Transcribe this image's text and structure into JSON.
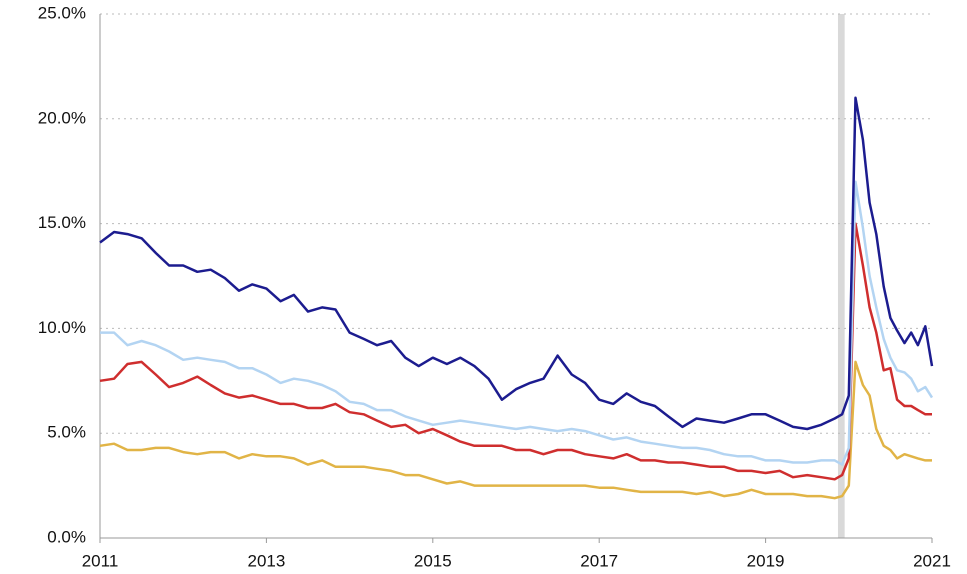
{
  "chart_data": {
    "type": "line",
    "x": [
      2011,
      2011.17,
      2011.33,
      2011.5,
      2011.67,
      2011.83,
      2012,
      2012.17,
      2012.33,
      2012.5,
      2012.67,
      2012.83,
      2013,
      2013.17,
      2013.33,
      2013.5,
      2013.67,
      2013.83,
      2014,
      2014.17,
      2014.33,
      2014.5,
      2014.67,
      2014.83,
      2015,
      2015.17,
      2015.33,
      2015.5,
      2015.67,
      2015.83,
      2016,
      2016.17,
      2016.33,
      2016.5,
      2016.67,
      2016.83,
      2017,
      2017.17,
      2017.33,
      2017.5,
      2017.67,
      2017.83,
      2018,
      2018.17,
      2018.33,
      2018.5,
      2018.67,
      2018.83,
      2019,
      2019.17,
      2019.33,
      2019.5,
      2019.67,
      2019.83,
      2019.92,
      2020,
      2020.08,
      2020.17,
      2020.25,
      2020.33,
      2020.42,
      2020.5,
      2020.58,
      2020.67,
      2020.75,
      2020.83,
      2020.92,
      2021
    ],
    "series": [
      {
        "color": "#1c1c8f",
        "values": [
          14.1,
          14.6,
          14.5,
          14.3,
          13.6,
          13.0,
          13.0,
          12.7,
          12.8,
          12.4,
          11.8,
          12.1,
          11.9,
          11.3,
          11.6,
          10.8,
          11.0,
          10.9,
          9.8,
          9.5,
          9.2,
          9.4,
          8.6,
          8.2,
          8.6,
          8.3,
          8.6,
          8.2,
          7.6,
          6.6,
          7.1,
          7.4,
          7.6,
          8.7,
          7.8,
          7.4,
          6.6,
          6.4,
          6.9,
          6.5,
          6.3,
          5.8,
          5.3,
          5.7,
          5.6,
          5.5,
          5.7,
          5.9,
          5.9,
          5.6,
          5.3,
          5.2,
          5.4,
          5.7,
          5.9,
          6.8,
          21.0,
          19.0,
          16.0,
          14.5,
          12.0,
          10.5,
          9.9,
          9.3,
          9.8,
          9.2,
          10.1,
          8.2
        ]
      },
      {
        "color": "#b3d4f2",
        "values": [
          9.8,
          9.8,
          9.2,
          9.4,
          9.2,
          8.9,
          8.5,
          8.6,
          8.5,
          8.4,
          8.1,
          8.1,
          7.8,
          7.4,
          7.6,
          7.5,
          7.3,
          7.0,
          6.5,
          6.4,
          6.1,
          6.1,
          5.8,
          5.6,
          5.4,
          5.5,
          5.6,
          5.5,
          5.4,
          5.3,
          5.2,
          5.3,
          5.2,
          5.1,
          5.2,
          5.1,
          4.9,
          4.7,
          4.8,
          4.6,
          4.5,
          4.4,
          4.3,
          4.3,
          4.2,
          4.0,
          3.9,
          3.9,
          3.7,
          3.7,
          3.6,
          3.6,
          3.7,
          3.7,
          3.5,
          4.3,
          17.0,
          14.8,
          12.5,
          11.0,
          9.5,
          8.6,
          8.0,
          7.9,
          7.6,
          7.0,
          7.2,
          6.7
        ]
      },
      {
        "color": "#cf2e2e",
        "values": [
          7.5,
          7.6,
          8.3,
          8.4,
          7.8,
          7.2,
          7.4,
          7.7,
          7.3,
          6.9,
          6.7,
          6.8,
          6.6,
          6.4,
          6.4,
          6.2,
          6.2,
          6.4,
          6.0,
          5.9,
          5.6,
          5.3,
          5.4,
          5.0,
          5.2,
          4.9,
          4.6,
          4.4,
          4.4,
          4.4,
          4.2,
          4.2,
          4.0,
          4.2,
          4.2,
          4.0,
          3.9,
          3.8,
          4.0,
          3.7,
          3.7,
          3.6,
          3.6,
          3.5,
          3.4,
          3.4,
          3.2,
          3.2,
          3.1,
          3.2,
          2.9,
          3.0,
          2.9,
          2.8,
          3.0,
          3.8,
          15.0,
          13.0,
          11.0,
          9.8,
          8.0,
          8.1,
          6.6,
          6.3,
          6.3,
          6.1,
          5.9,
          5.9
        ]
      },
      {
        "color": "#e1b446",
        "values": [
          4.4,
          4.5,
          4.2,
          4.2,
          4.3,
          4.3,
          4.1,
          4.0,
          4.1,
          4.1,
          3.8,
          4.0,
          3.9,
          3.9,
          3.8,
          3.5,
          3.7,
          3.4,
          3.4,
          3.4,
          3.3,
          3.2,
          3.0,
          3.0,
          2.8,
          2.6,
          2.7,
          2.5,
          2.5,
          2.5,
          2.5,
          2.5,
          2.5,
          2.5,
          2.5,
          2.5,
          2.4,
          2.4,
          2.3,
          2.2,
          2.2,
          2.2,
          2.2,
          2.1,
          2.2,
          2.0,
          2.1,
          2.3,
          2.1,
          2.1,
          2.1,
          2.0,
          2.0,
          1.9,
          2.0,
          2.5,
          8.4,
          7.3,
          6.8,
          5.2,
          4.4,
          4.2,
          3.8,
          4.0,
          3.9,
          3.8,
          3.7,
          3.7
        ]
      }
    ],
    "shade": [
      2019.87,
      2019.95
    ],
    "xlim": [
      2011,
      2021
    ],
    "xticks": [
      2011,
      2013,
      2015,
      2017,
      2019,
      2021
    ],
    "ylim": [
      0,
      25
    ],
    "yticks": [
      {
        "value": 0,
        "label": "0.0%"
      },
      {
        "value": 5,
        "label": "5.0%"
      },
      {
        "value": 10,
        "label": "10.0%"
      },
      {
        "value": 15,
        "label": "15.0%"
      },
      {
        "value": 20,
        "label": "20.0%"
      },
      {
        "value": 25,
        "label": "25.0%"
      }
    ],
    "grid": true
  }
}
